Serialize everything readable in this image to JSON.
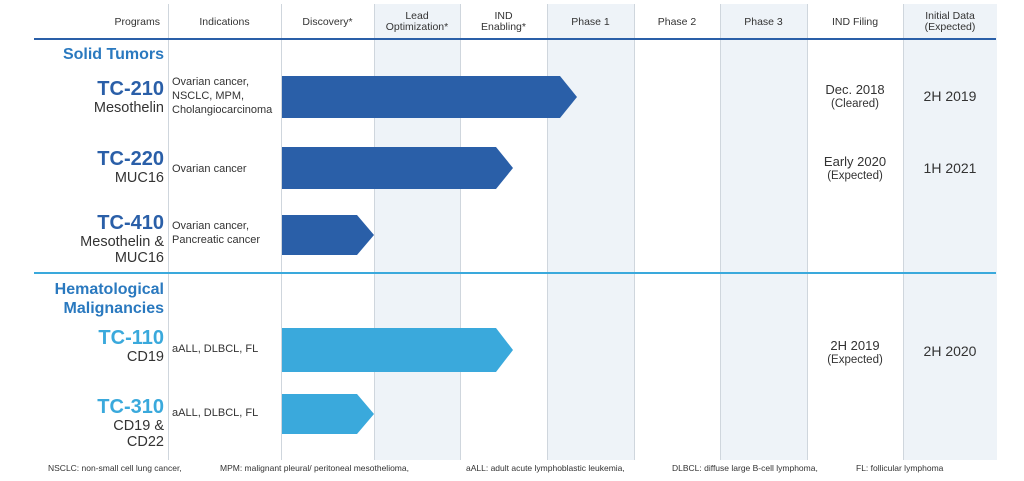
{
  "headers": {
    "programs": "Programs",
    "indications": "Indications",
    "discovery": "Discovery*",
    "lead_opt": "Lead\nOptimization*",
    "ind_enabling": "IND\nEnabling*",
    "phase1": "Phase 1",
    "phase2": "Phase 2",
    "phase3": "Phase 3",
    "ind_filing": "IND Filing",
    "initial_data": "Initial Data\n(Expected)"
  },
  "sections": {
    "solid": "Solid Tumors",
    "heme": "Hematological\nMalignancies"
  },
  "programs": [
    {
      "name": "TC-210",
      "target": "Mesothelin",
      "indication": "Ovarian cancer,\nNSCLC, MPM,\nCholangiocarcinoma",
      "stage": "Phase 1",
      "filing": "Dec. 2018",
      "filing_note": "(Cleared)",
      "data": "2H 2019"
    },
    {
      "name": "TC-220",
      "target": "MUC16",
      "indication": "Ovarian cancer",
      "stage": "IND Enabling",
      "filing": "Early 2020",
      "filing_note": "(Expected)",
      "data": "1H 2021"
    },
    {
      "name": "TC-410",
      "target": "Mesothelin &\nMUC16",
      "indication": "Ovarian cancer,\nPancreatic cancer",
      "stage": "Discovery",
      "filing": "",
      "filing_note": "",
      "data": ""
    },
    {
      "name": "TC-110",
      "target": "CD19",
      "indication": "aALL, DLBCL, FL",
      "stage": "IND Enabling",
      "filing": "2H 2019",
      "filing_note": "(Expected)",
      "data": "2H 2020"
    },
    {
      "name": "TC-310",
      "target": "CD19 &\nCD22",
      "indication": "aALL, DLBCL, FL",
      "stage": "Discovery",
      "filing": "",
      "filing_note": "",
      "data": ""
    }
  ],
  "colors": {
    "dark_bar": "#2a5fa8",
    "light_bar": "#3aa9dc",
    "section": "#2a79bf",
    "shade": "#eef3f8"
  },
  "footnotes": [
    "NSCLC: non-small cell lung cancer,",
    "MPM: malignant pleural/ peritoneal mesothelioma,",
    "aALL: adult acute lymphoblastic leukemia,",
    "DLBCL: diffuse large B-cell lymphoma,",
    "FL: follicular lymphoma"
  ]
}
